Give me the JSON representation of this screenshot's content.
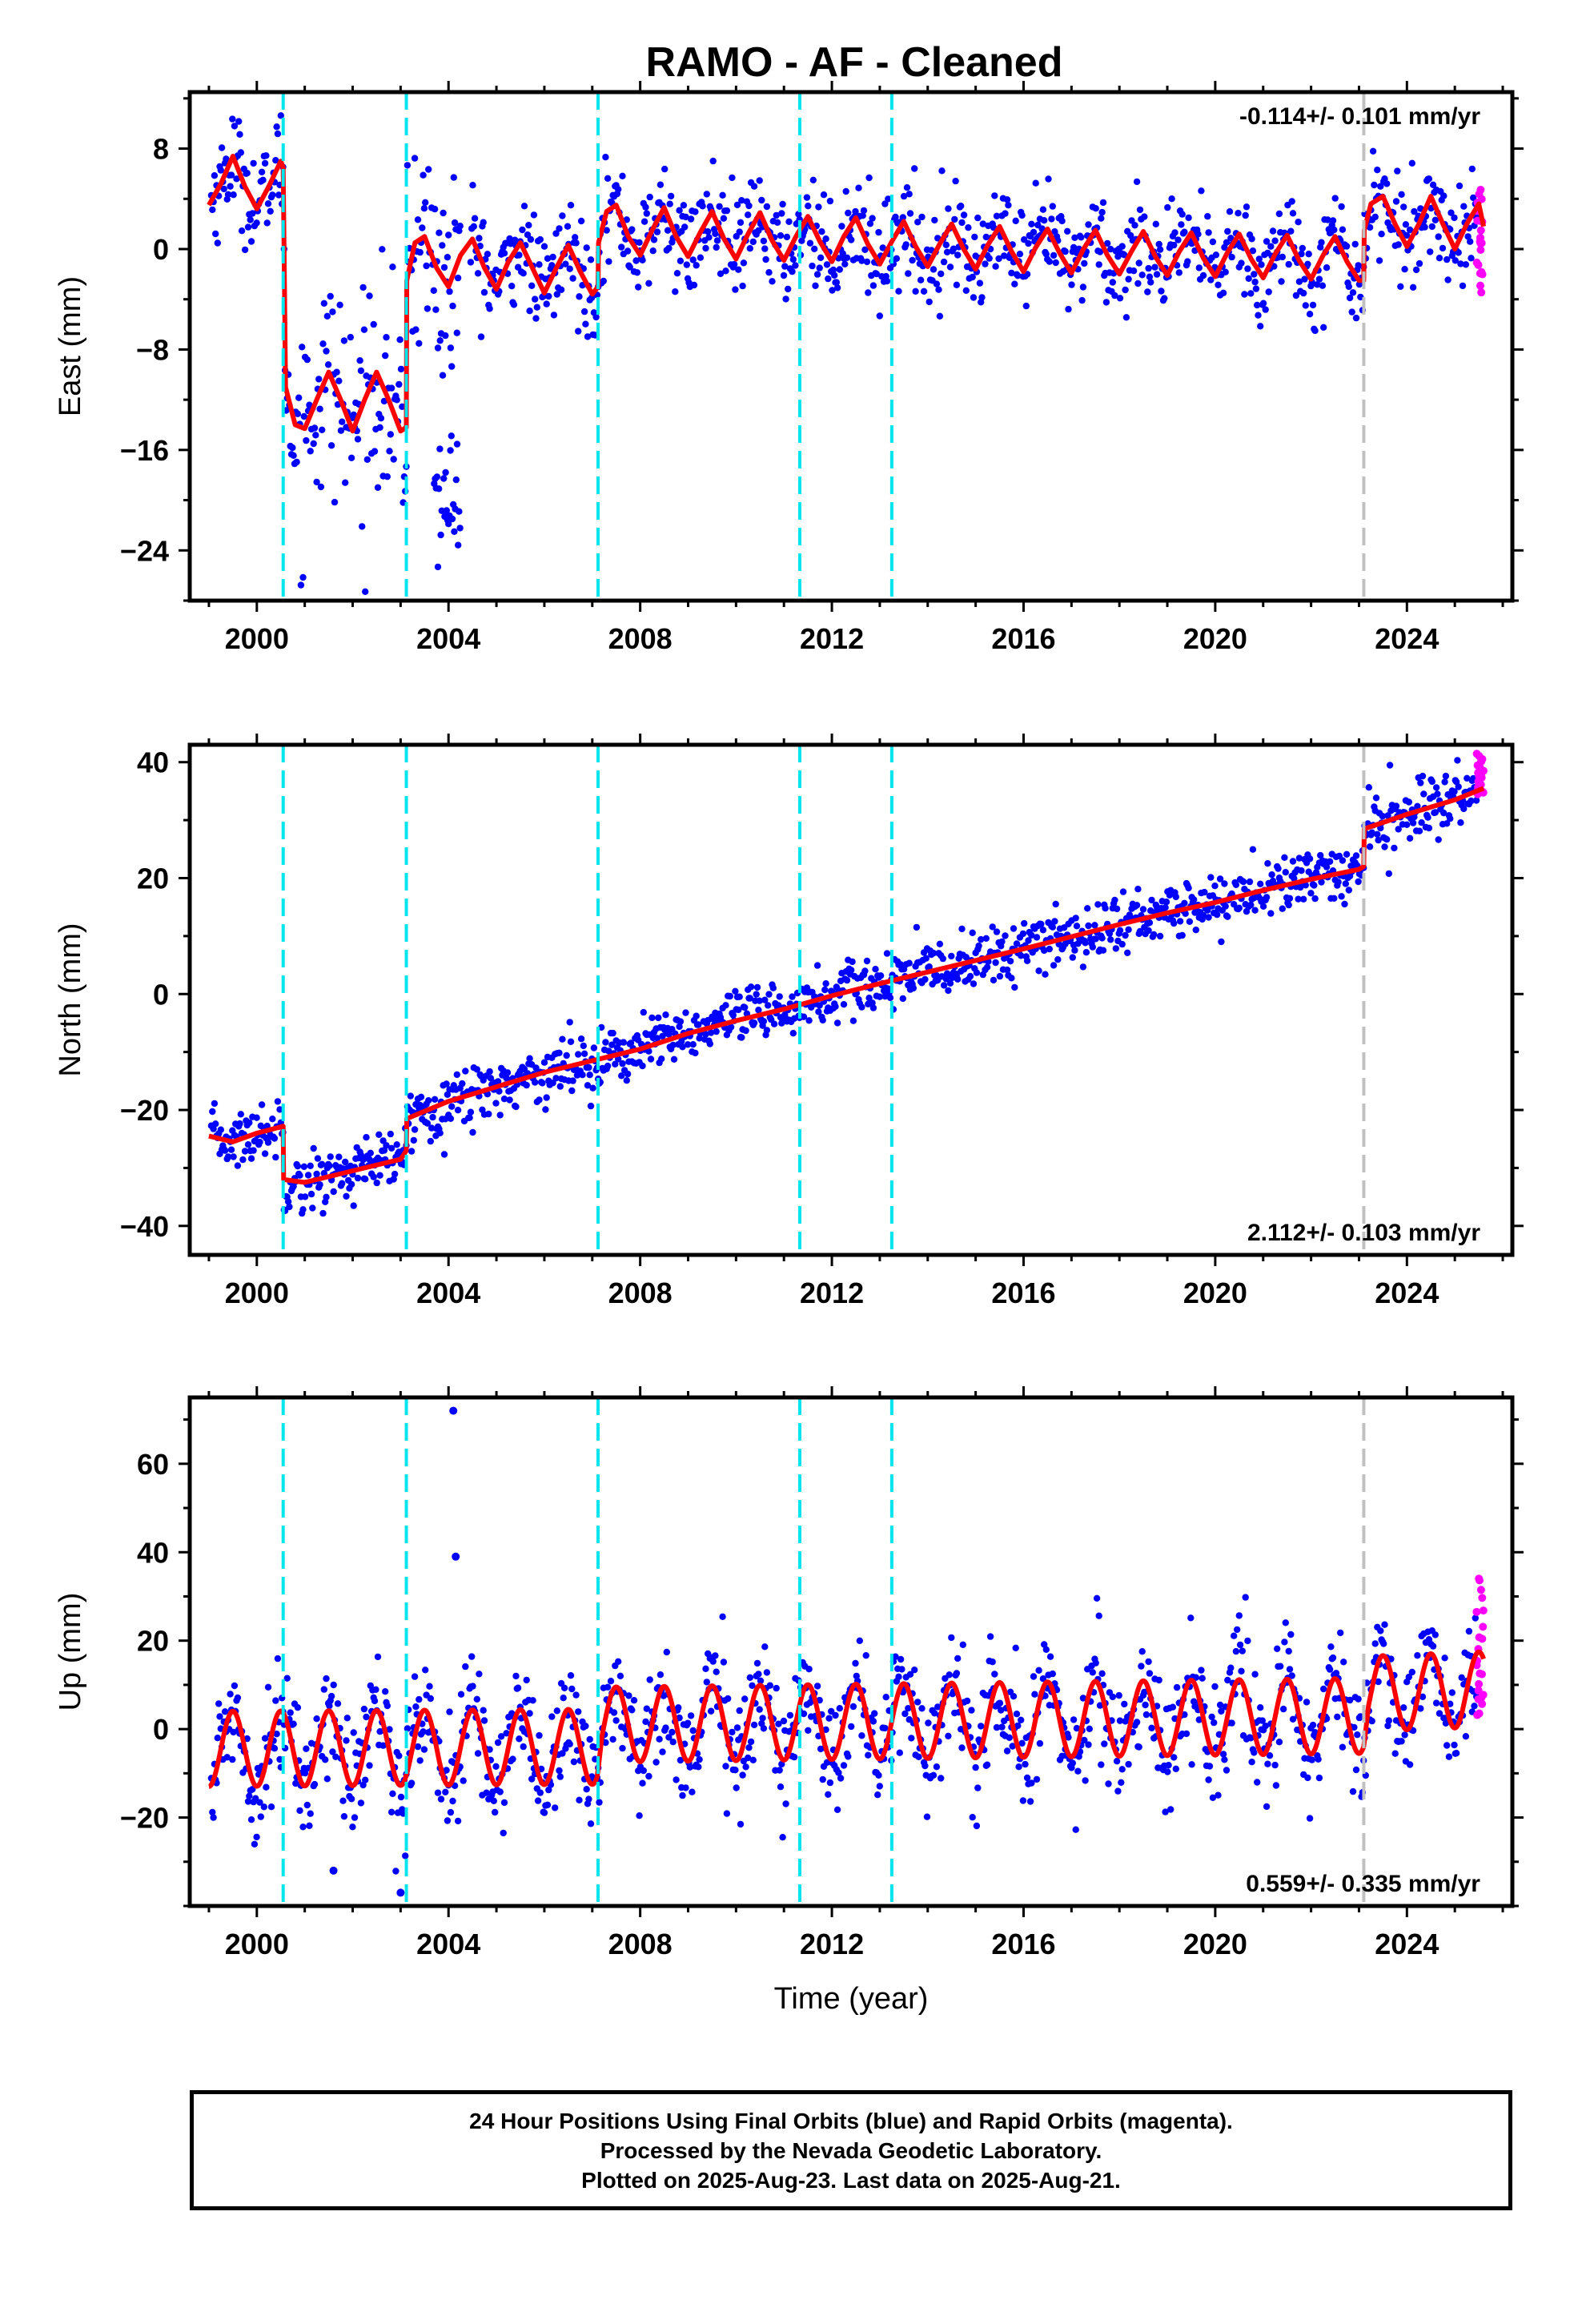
{
  "title": "RAMO  - AF - Cleaned",
  "xlabel": "Time (year)",
  "footer": {
    "line1": "24 Hour Positions Using Final Orbits (blue) and Rapid Orbits (magenta).",
    "line2": "Processed by the Nevada Geodetic Laboratory.",
    "line3": "Plotted on 2025-Aug-23. Last data on 2025-Aug-21."
  },
  "colors": {
    "final": "#0000ff",
    "rapid": "#ff00ff",
    "model": "#ff0000",
    "equipment_change": "#00e5ee",
    "earthquake": "#c0c0c0",
    "axis": "#000000"
  },
  "chart_data": [
    {
      "type": "scatter",
      "component": "east",
      "ylabel": "East (mm)",
      "ylim": [
        -28,
        12.5
      ],
      "yticks": [
        8,
        0,
        -8,
        -16,
        -24
      ],
      "xlim": [
        1998.6,
        2026.2
      ],
      "xticks": [
        2000,
        2004,
        2008,
        2012,
        2016,
        2020,
        2024
      ],
      "velocity": "-0.114+/- 0.101 mm/yr",
      "velocity_position": "top-right",
      "offsets_cyan": [
        2000.55,
        2003.12,
        2007.12,
        2011.33,
        2013.25
      ],
      "offsets_gray": [
        2023.1
      ],
      "series": [
        {
          "role": "model",
          "x": [
            1999.0,
            1999.25,
            1999.5,
            1999.75,
            2000.0,
            2000.25,
            2000.5,
            2000.55,
            2000.6,
            2000.8,
            2001.0,
            2001.25,
            2001.5,
            2001.75,
            2002.0,
            2002.25,
            2002.5,
            2002.75,
            2003.0,
            2003.12,
            2003.13,
            2003.3,
            2003.5,
            2003.75,
            2004.0,
            2004.25,
            2004.5,
            2004.75,
            2005.0,
            2005.25,
            2005.5,
            2005.75,
            2006.0,
            2006.25,
            2006.5,
            2006.75,
            2007.0,
            2007.12,
            2007.13,
            2007.3,
            2007.5,
            2007.75,
            2008.0,
            2008.25,
            2008.5,
            2008.75,
            2009.0,
            2009.25,
            2009.5,
            2009.75,
            2010.0,
            2010.25,
            2010.5,
            2010.75,
            2011.0,
            2011.25,
            2011.5,
            2011.75,
            2012.0,
            2012.25,
            2012.5,
            2012.75,
            2013.0,
            2013.25,
            2013.5,
            2013.75,
            2014.0,
            2014.25,
            2014.5,
            2014.75,
            2015.0,
            2015.25,
            2015.5,
            2015.75,
            2016.0,
            2016.25,
            2016.5,
            2016.75,
            2017.0,
            2017.25,
            2017.5,
            2017.75,
            2018.0,
            2018.25,
            2018.5,
            2018.75,
            2019.0,
            2019.25,
            2019.5,
            2019.75,
            2020.0,
            2020.25,
            2020.5,
            2020.75,
            2021.0,
            2021.25,
            2021.5,
            2021.75,
            2022.0,
            2022.25,
            2022.5,
            2022.75,
            2023.0,
            2023.1,
            2023.11,
            2023.25,
            2023.5,
            2023.75,
            2024.0,
            2024.25,
            2024.5,
            2024.75,
            2025.0,
            2025.25,
            2025.5,
            2025.6
          ],
          "y": [
            3.5,
            5.2,
            7.4,
            5.0,
            3.2,
            5.0,
            7.0,
            6.5,
            -11,
            -14,
            -14.3,
            -12,
            -9.8,
            -12,
            -14.5,
            -12,
            -9.8,
            -12,
            -14.5,
            -14.2,
            -2.5,
            0.5,
            1.0,
            -1.5,
            -3.0,
            -0.5,
            0.8,
            -1.5,
            -3.2,
            -1.0,
            0.5,
            -1.5,
            -3.5,
            -1.5,
            0.3,
            -1.8,
            -3.6,
            -3.0,
            0.5,
            3.0,
            3.5,
            1.0,
            -0.5,
            1.5,
            3.3,
            1.0,
            -0.6,
            1.3,
            3.0,
            0.8,
            -0.8,
            1.2,
            2.9,
            0.7,
            -0.9,
            1.0,
            2.6,
            0.6,
            -1.0,
            1.0,
            2.5,
            0.4,
            -1.2,
            0.6,
            2.2,
            0.2,
            -1.4,
            0.4,
            2.0,
            0,
            -1.6,
            0.3,
            1.8,
            -0.2,
            -1.8,
            0.1,
            1.6,
            -0.3,
            -1.9,
            0,
            1.5,
            -0.5,
            -2.0,
            -0.2,
            1.4,
            -0.6,
            -2.1,
            -0.2,
            1.3,
            -0.7,
            -2.2,
            -0.3,
            1.2,
            -0.8,
            -2.3,
            -0.4,
            1.1,
            -0.9,
            -2.4,
            -0.5,
            1.0,
            -1.0,
            -2.5,
            -2.5,
            1.5,
            3.6,
            4.2,
            2.0,
            0.2,
            2.0,
            4.2,
            2.0,
            0.0,
            2.0,
            3.6,
            1.8
          ]
        },
        {
          "role": "final",
          "scatter_band": 2.0
        },
        {
          "role": "rapid",
          "x_range": [
            2025.45,
            2025.6
          ],
          "y_range": [
            -3.5,
            5.0
          ]
        }
      ]
    },
    {
      "type": "scatter",
      "component": "north",
      "ylabel": "North (mm)",
      "ylim": [
        -45,
        43
      ],
      "yticks": [
        40,
        20,
        0,
        -20,
        -40
      ],
      "xlim": [
        1998.6,
        2026.2
      ],
      "xticks": [
        2000,
        2004,
        2008,
        2012,
        2016,
        2020,
        2024
      ],
      "velocity": "2.112+/- 0.103 mm/yr",
      "velocity_position": "bottom-right",
      "offsets_cyan": [
        2000.55,
        2003.12,
        2007.12,
        2011.33,
        2013.25
      ],
      "offsets_gray": [
        2023.1
      ],
      "series": [
        {
          "role": "model",
          "x": [
            1999.0,
            1999.5,
            2000.0,
            2000.55,
            2000.56,
            2001.0,
            2002.0,
            2003.0,
            2003.12,
            2003.13,
            2004.0,
            2005.0,
            2006.0,
            2007.0,
            2008.0,
            2009.0,
            2010.0,
            2011.0,
            2012.0,
            2013.0,
            2014.0,
            2015.0,
            2016.0,
            2017.0,
            2018.0,
            2019.0,
            2020.0,
            2021.0,
            2022.0,
            2023.0,
            2023.1,
            2023.11,
            2024.0,
            2025.0,
            2025.6
          ],
          "y": [
            -24.5,
            -25.5,
            -24,
            -22.8,
            -32,
            -32.5,
            -30.5,
            -28.5,
            -27,
            -21.5,
            -18.5,
            -16,
            -13.5,
            -11.5,
            -9.5,
            -6.8,
            -4.6,
            -2.6,
            -0.3,
            1.8,
            3.8,
            5.8,
            7.8,
            9.9,
            12.0,
            14.0,
            15.8,
            17.9,
            19.8,
            21.5,
            22,
            28.5,
            31,
            33.5,
            35.5
          ]
        },
        {
          "role": "final",
          "scatter_band": 2.5
        },
        {
          "role": "rapid",
          "x_range": [
            2025.45,
            2025.6
          ],
          "y_range": [
            34,
            41.5
          ]
        }
      ]
    },
    {
      "type": "scatter",
      "component": "up",
      "ylabel": "Up (mm)",
      "ylim": [
        -40,
        75
      ],
      "yticks": [
        60,
        40,
        20,
        0,
        -20
      ],
      "xlim": [
        1998.6,
        2026.2
      ],
      "xticks": [
        2000,
        2004,
        2008,
        2012,
        2016,
        2020,
        2024
      ],
      "velocity": "0.559+/- 0.335 mm/yr",
      "velocity_position": "bottom-right",
      "offsets_cyan": [
        2000.55,
        2003.12,
        2007.12,
        2011.33,
        2013.25
      ],
      "offsets_gray": [
        2023.1
      ],
      "series": [
        {
          "role": "model",
          "seasonal_amplitude": 8.5,
          "mean_trend": [
            [
              1999.0,
              -4.5
            ],
            [
              2007.1,
              -4.0
            ],
            [
              2007.2,
              1.0
            ],
            [
              2023.1,
              3.0
            ],
            [
              2023.2,
              8.0
            ],
            [
              2025.6,
              9.0
            ]
          ]
        },
        {
          "role": "final",
          "scatter_band": 6.5,
          "outliers": [
            [
              2004.1,
              72
            ],
            [
              2004.15,
              39
            ],
            [
              2003.0,
              -37
            ],
            [
              2001.6,
              -32
            ]
          ]
        },
        {
          "role": "rapid",
          "x_range": [
            2025.45,
            2025.6
          ],
          "y_range": [
            3,
            37
          ]
        }
      ]
    }
  ]
}
